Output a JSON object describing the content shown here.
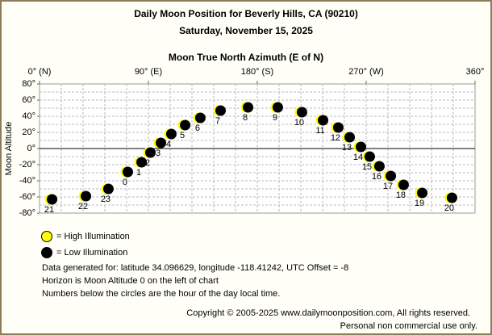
{
  "chart_data": {
    "type": "scatter",
    "title": "Daily Moon Position for Beverly Hills, CA (90210)",
    "subtitle": "Saturday, November 15, 2025",
    "x_axis_label": "Moon True North Azimuth (E of N)",
    "y_axis_label": "Moon Altitude",
    "xlim": [
      0,
      360
    ],
    "ylim": [
      -80,
      80
    ],
    "xticks": [
      {
        "value": 0,
        "label": "0° (N)"
      },
      {
        "value": 90,
        "label": "90° (E)"
      },
      {
        "value": 180,
        "label": "180° (S)"
      },
      {
        "value": 270,
        "label": "270° (W)"
      },
      {
        "value": 360,
        "label": "360°"
      }
    ],
    "yticks": [
      {
        "value": 80,
        "label": "80°"
      },
      {
        "value": 60,
        "label": "60°"
      },
      {
        "value": 40,
        "label": "40°"
      },
      {
        "value": 20,
        "label": "20°"
      },
      {
        "value": 0,
        "label": "0°"
      },
      {
        "value": -20,
        "label": "-20°"
      },
      {
        "value": -40,
        "label": "-40°"
      },
      {
        "value": -60,
        "label": "-60°"
      },
      {
        "value": -80,
        "label": "-80°"
      }
    ],
    "x_gridlines": [
      18,
      36,
      54,
      72,
      90,
      108,
      126,
      144,
      162,
      180,
      198,
      216,
      234,
      252,
      270,
      288,
      306,
      324,
      342
    ],
    "y_gridlines": [
      70,
      60,
      50,
      40,
      30,
      20,
      10,
      -10,
      -20,
      -30,
      -40,
      -50,
      -60,
      -70
    ],
    "horizon": 0,
    "x": [
      8.7,
      36.7,
      55.3,
      71.3,
      82.7,
      90,
      98.7,
      107.3,
      118.7,
      131.3,
      148,
      170.7,
      195.3,
      215.3,
      232.7,
      245.3,
      254.7,
      264,
      271.3,
      279.3,
      288.7,
      299.3,
      314.7,
      339.3
    ],
    "values": [
      -63,
      -59,
      -50,
      -29,
      -17,
      -5,
      7,
      18,
      29,
      38,
      47,
      51,
      51,
      45,
      35,
      26,
      14,
      2,
      -10,
      -22,
      -34,
      -45,
      -55,
      -61
    ],
    "point_labels": [
      "21",
      "22",
      "23",
      "0",
      "1",
      "2",
      "3",
      "4",
      "5",
      "6",
      "7",
      "8",
      "9",
      "10",
      "11",
      "12",
      "13",
      "14",
      "15",
      "16",
      "17",
      "18",
      "19",
      "20"
    ],
    "lit_color": "#ffff00",
    "dark_color": "#000000",
    "legend": [
      {
        "label": "= High Illumination",
        "color": "#ffff00"
      },
      {
        "label": "= Low Illumination",
        "color": "#000000"
      }
    ],
    "notes": [
      "Data generated for: latitude 34.096629, longitude -118.41242, UTC Offset = -8",
      "Horizon is Moon Altitude 0 on the left of chart",
      "Numbers below the circles are the hour of the day local time."
    ],
    "footer": [
      "Copyright © 2005-2025 www.dailymoonposition.com, All rights reserved.",
      "Personal non commercial use only."
    ]
  }
}
